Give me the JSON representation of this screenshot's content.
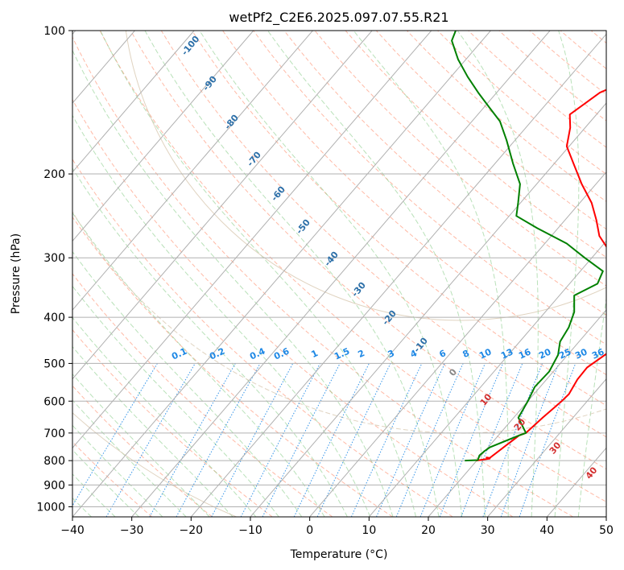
{
  "chart_data": {
    "type": "line",
    "title": "wetPf2_C2E6.2025.097.07.55.R21",
    "xlabel": "Temperature (°C)",
    "ylabel": "Pressure (hPa)",
    "xlim": [
      -40,
      50
    ],
    "ylim": [
      1050,
      100
    ],
    "y_scale": "log",
    "grid": true,
    "x_ticks": [
      -40,
      -30,
      -20,
      -10,
      0,
      10,
      20,
      30,
      40,
      50
    ],
    "y_ticks": [
      100,
      200,
      300,
      400,
      500,
      600,
      700,
      800,
      900,
      1000
    ],
    "isotherm_labels": [
      "-100",
      "-90",
      "-80",
      "-70",
      "-60",
      "-50",
      "-40",
      "-30",
      "-20",
      "-10",
      "0",
      "10",
      "20",
      "30",
      "40"
    ],
    "mixing_ratio_labels": [
      "0.1",
      "0.2",
      "0.4",
      "0.6",
      "1",
      "1.5",
      "2",
      "3",
      "4",
      "6",
      "8",
      "10",
      "13",
      "16",
      "20",
      "25",
      "30",
      "36"
    ],
    "series": [
      {
        "role": "temperature",
        "color": "#ff0000",
        "points": [
          [
            19.9,
            800
          ],
          [
            21.9,
            792
          ],
          [
            21.2,
            788
          ],
          [
            21.8,
            790
          ],
          [
            23.5,
            708
          ],
          [
            24.3,
            700
          ],
          [
            24.9,
            650
          ],
          [
            25.7,
            600
          ],
          [
            25.9,
            580
          ],
          [
            25.2,
            540
          ],
          [
            25.1,
            510
          ],
          [
            26.7,
            470
          ],
          [
            28.5,
            440
          ],
          [
            29.3,
            420
          ],
          [
            29.2,
            400
          ],
          [
            26.1,
            370
          ],
          [
            20.1,
            320
          ],
          [
            11.9,
            290
          ],
          [
            8.1,
            270
          ],
          [
            5.3,
            250
          ],
          [
            2.0,
            230
          ],
          [
            -2.4,
            210
          ],
          [
            -6.8,
            190
          ],
          [
            -10.4,
            175
          ],
          [
            -12.5,
            160
          ],
          [
            -14.5,
            150
          ],
          [
            -12.6,
            135
          ],
          [
            -8.8,
            125
          ],
          [
            -5.2,
            115
          ],
          [
            -1.8,
            105
          ],
          [
            0.4,
            100
          ]
        ]
      },
      {
        "role": "dewpoint",
        "color": "#008000",
        "points": [
          [
            18.0,
            800
          ],
          [
            20.1,
            798
          ],
          [
            19.7,
            780
          ],
          [
            19.9,
            765
          ],
          [
            20.3,
            750
          ],
          [
            23.5,
            708
          ],
          [
            24.3,
            700
          ],
          [
            20.8,
            650
          ],
          [
            20.0,
            600
          ],
          [
            19.1,
            560
          ],
          [
            19.3,
            520
          ],
          [
            18.4,
            480
          ],
          [
            16.8,
            450
          ],
          [
            16.2,
            420
          ],
          [
            14.9,
            390
          ],
          [
            12.5,
            360
          ],
          [
            14.7,
            340
          ],
          [
            13.8,
            320
          ],
          [
            8.8,
            300
          ],
          [
            3.7,
            280
          ],
          [
            -3.5,
            260
          ],
          [
            -8.8,
            245
          ],
          [
            -10.4,
            230
          ],
          [
            -12.8,
            210
          ],
          [
            -17.0,
            190
          ],
          [
            -21.4,
            170
          ],
          [
            -25.3,
            155
          ],
          [
            -29.1,
            145
          ],
          [
            -33.1,
            135
          ],
          [
            -37.2,
            125
          ],
          [
            -41.3,
            115
          ],
          [
            -45.1,
            105
          ],
          [
            -45.9,
            100
          ]
        ]
      }
    ]
  }
}
